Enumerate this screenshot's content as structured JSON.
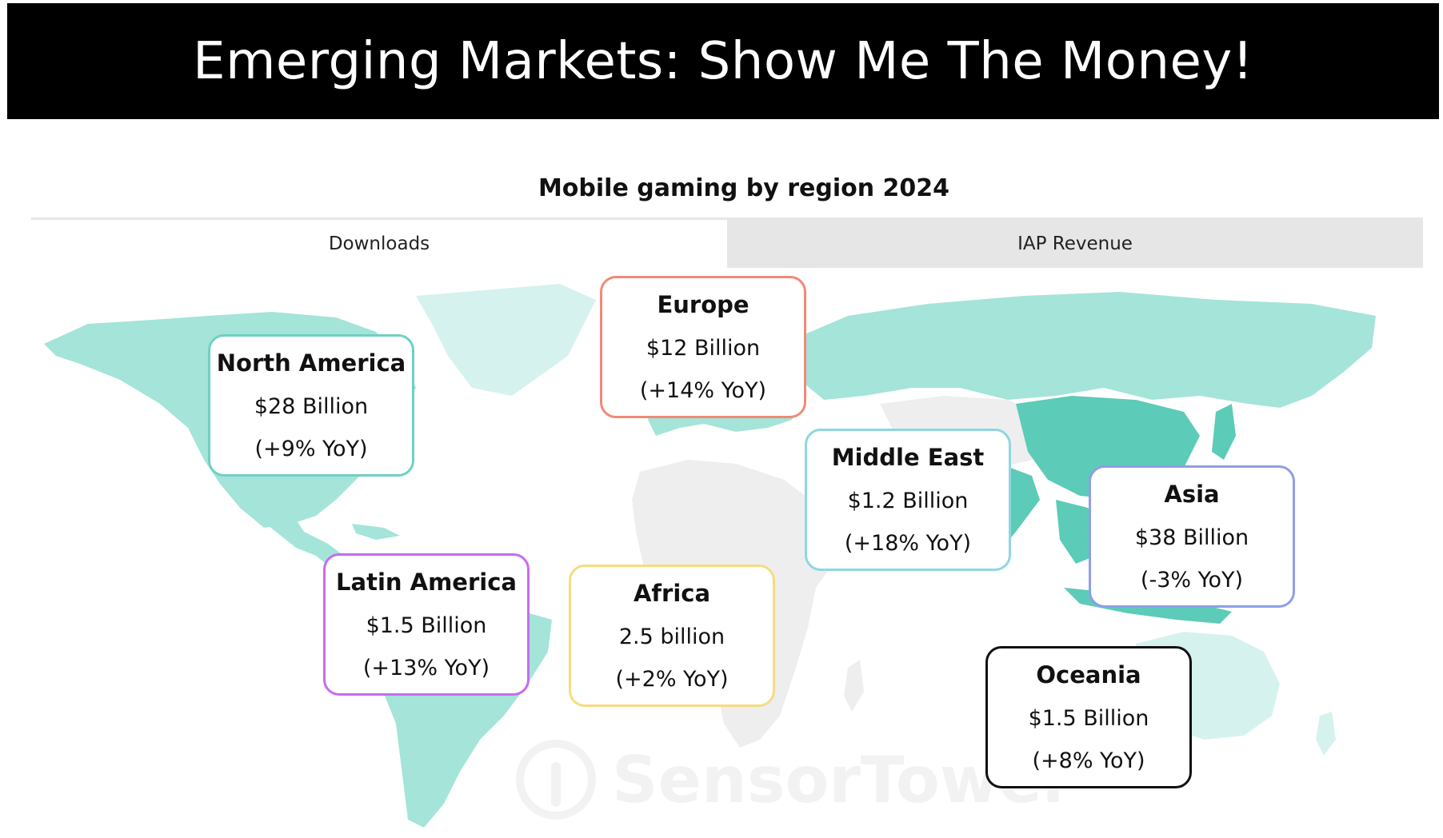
{
  "banner": {
    "title": "Emerging Markets: Show Me The Money!"
  },
  "subtitle": "Mobile gaming by region 2024",
  "tabs": [
    {
      "label": "Downloads",
      "active": true
    },
    {
      "label": "IAP Revenue",
      "active": false
    }
  ],
  "colors": {
    "map_teal": "#5ccbb8",
    "map_light_teal": "#a4e4d9",
    "map_pale_teal": "#d6f2ee",
    "map_gray": "#eeeeee"
  },
  "watermark": "SensorTower",
  "regions": [
    {
      "name": "North America",
      "value": "$28 Billion",
      "growth": "(+9% YoY)",
      "border_color": "#6fd1c2"
    },
    {
      "name": "Europe",
      "value": "$12 Billion",
      "growth": "(+14% YoY)",
      "border_color": "#f08a78"
    },
    {
      "name": "Middle East",
      "value": "$1.2 Billion",
      "growth": "(+18% YoY)",
      "border_color": "#8fd6e0"
    },
    {
      "name": "Asia",
      "value": "$38 Billion",
      "growth": "(-3% YoY)",
      "border_color": "#8f9ee8"
    },
    {
      "name": "Latin America",
      "value": "$1.5 Billion",
      "growth": "(+13% YoY)",
      "border_color": "#c66cf0"
    },
    {
      "name": "Africa",
      "value": "2.5 billion",
      "growth": "(+2% YoY)",
      "border_color": "#f5dc80"
    },
    {
      "name": "Oceania",
      "value": "$1.5 Billion",
      "growth": "(+8% YoY)",
      "border_color": "#111111"
    }
  ]
}
